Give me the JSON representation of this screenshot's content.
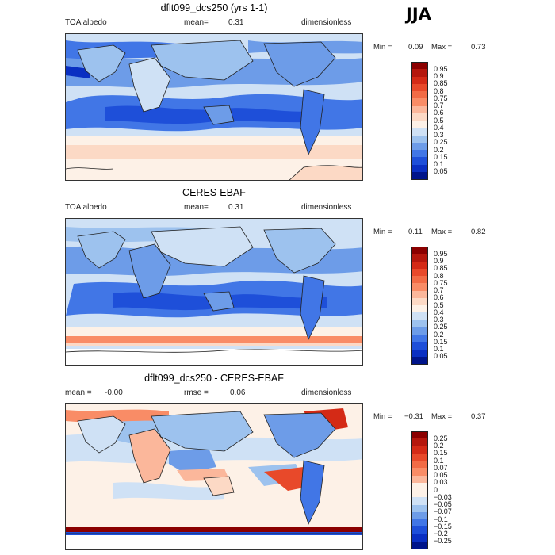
{
  "season": "JJA",
  "panels": [
    {
      "id": "model",
      "title": "dflt099_dcs250 (yrs 1-1)",
      "left_label": "TOA albedo",
      "center_label": "mean=",
      "center_value": "0.31",
      "right_label": "dimensionless",
      "min_label": "Min =",
      "min_value": "0.09",
      "max_label": "Max =",
      "max_value": "0.73",
      "colorbar_levels": [
        "0.95",
        "0.9",
        "0.85",
        "0.8",
        "0.75",
        "0.7",
        "0.6",
        "0.5",
        "0.4",
        "0.3",
        "0.25",
        "0.2",
        "0.15",
        "0.1",
        "0.05"
      ],
      "colorbar_colors": [
        "#8b0000",
        "#b5170d",
        "#d42a16",
        "#e8492a",
        "#f26b45",
        "#f98c66",
        "#fbb79b",
        "#fcd9c5",
        "#fdf1e7",
        "#cfe1f5",
        "#9dc2ee",
        "#6d9ce8",
        "#4176e6",
        "#1e4fd9",
        "#0a2fc2",
        "#00148a"
      ]
    },
    {
      "id": "obs",
      "title": "CERES-EBAF",
      "left_label": "TOA albedo",
      "center_label": "mean=",
      "center_value": "0.31",
      "right_label": "dimensionless",
      "min_label": "Min =",
      "min_value": "0.11",
      "max_label": "Max =",
      "max_value": "0.82",
      "colorbar_levels": [
        "0.95",
        "0.9",
        "0.85",
        "0.8",
        "0.75",
        "0.7",
        "0.6",
        "0.5",
        "0.4",
        "0.3",
        "0.25",
        "0.2",
        "0.15",
        "0.1",
        "0.05"
      ],
      "colorbar_colors": [
        "#8b0000",
        "#b5170d",
        "#d42a16",
        "#e8492a",
        "#f26b45",
        "#f98c66",
        "#fbb79b",
        "#fcd9c5",
        "#fdf1e7",
        "#cfe1f5",
        "#9dc2ee",
        "#6d9ce8",
        "#4176e6",
        "#1e4fd9",
        "#0a2fc2",
        "#00148a"
      ]
    },
    {
      "id": "diff",
      "title": "dflt099_dcs250 - CERES-EBAF",
      "left_label": "mean =",
      "left_value": "-0.00",
      "center_label": "rmse =",
      "center_value": "0.06",
      "right_label": "dimensionless",
      "min_label": "Min =",
      "min_value": "−0.31",
      "max_label": "Max =",
      "max_value": "0.37",
      "colorbar_levels": [
        "0.25",
        "0.2",
        "0.15",
        "0.1",
        "0.07",
        "0.05",
        "0.03",
        "0",
        "−0.03",
        "−0.05",
        "−0.07",
        "−0.1",
        "−0.15",
        "−0.2",
        "−0.25"
      ],
      "colorbar_colors": [
        "#8b0000",
        "#b5170d",
        "#d42a16",
        "#e8492a",
        "#f26b45",
        "#f98c66",
        "#fbb79b",
        "#fdf1e7",
        "#fdf1e7",
        "#cfe1f5",
        "#9dc2ee",
        "#6d9ce8",
        "#4176e6",
        "#1e4fd9",
        "#0a2fc2",
        "#00148a"
      ]
    }
  ]
}
